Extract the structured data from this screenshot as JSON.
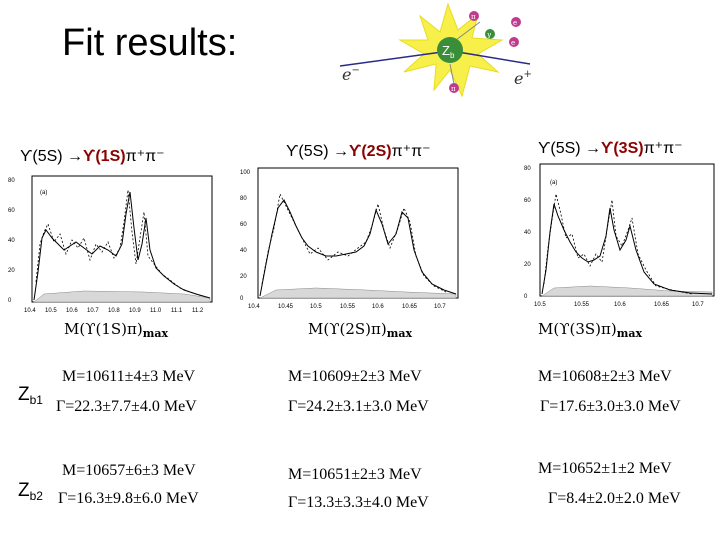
{
  "title": "Fit results:",
  "diagram": {
    "label_z": "Z",
    "label_z_sub": "b",
    "label_em": "e",
    "label_em_sup": "−",
    "label_ep": "e",
    "label_ep_sup": "+",
    "label_pi_top": "π",
    "label_pi_bottom": "π",
    "label_gamma": "γ",
    "label_ee1": "e",
    "label_ee2": "e",
    "colors": {
      "burst": "#f7f04a",
      "zb": "#3a8e3a",
      "dots": "#c03a8e"
    }
  },
  "processes": [
    {
      "prefix": "ϒ(5S) →",
      "state": "ϒ(1S)",
      "suffix": "π⁺π⁻"
    },
    {
      "prefix": "ϒ(5S) →",
      "state": "ϒ(2S)",
      "suffix": "π⁺π⁻"
    },
    {
      "prefix": "ϒ(5S) →",
      "state": "ϒ(3S)",
      "suffix": "π⁺π⁻"
    }
  ],
  "plots": [
    {
      "panel": "(a)",
      "yticks": [
        "80",
        "60",
        "40",
        "20",
        "0"
      ],
      "xticks": [
        "10.4",
        "10.5",
        "10.6",
        "10.7",
        "10.8",
        "10.9",
        "11.0",
        "11.1",
        "11.2"
      ]
    },
    {
      "panel": "",
      "yticks": [
        "100",
        "80",
        "60",
        "40",
        "20",
        "0"
      ],
      "xticks": [
        "10.4",
        "10.45",
        "10.5",
        "10.55",
        "10.6",
        "10.65",
        "10.7"
      ]
    },
    {
      "panel": "(a)",
      "yticks": [
        "80",
        "60",
        "40",
        "20",
        "0"
      ],
      "xticks": [
        "10.5",
        "10.55",
        "10.6",
        "10.65",
        "10.7"
      ]
    }
  ],
  "mmax_labels": [
    {
      "text": "M(ϒ(1S)π)",
      "sub": "max"
    },
    {
      "text": "M(ϒ(2S)π)",
      "sub": "max"
    },
    {
      "text": "M(ϒ(3S)π)",
      "sub": "max"
    }
  ],
  "zb1": {
    "label": "Z",
    "sub": "b1",
    "mass": [
      "M=10611±4±3 MeV",
      "M=10609±2±3 MeV",
      "M=10608±2±3 MeV"
    ],
    "width": [
      "Γ=22.3±7.7±4.0 MeV",
      "Γ=24.2±3.1±3.0 MeV",
      "Γ=17.6±3.0±3.0 MeV"
    ]
  },
  "zb2": {
    "label": "Z",
    "sub": "b2",
    "mass": [
      "M=10657±6±3 MeV",
      "M=10651±2±3 MeV",
      "M=10652±1±2 MeV"
    ],
    "width": [
      "Γ=16.3±9.8±6.0 MeV",
      "Γ=13.3±3.3±4.0 MeV",
      "Γ=8.4±2.0±2.0 MeV"
    ]
  }
}
